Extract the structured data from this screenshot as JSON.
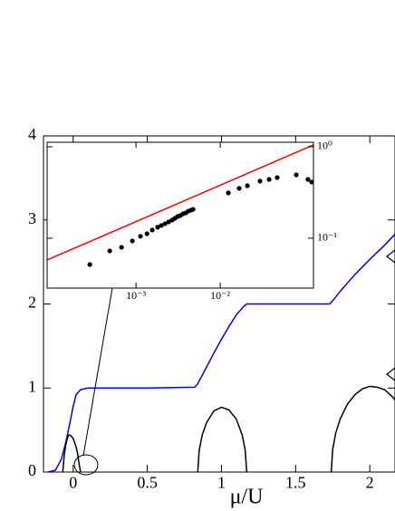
{
  "chart_data": [
    {
      "type": "line",
      "xlabel": "μ/U",
      "xlim": [
        -0.2,
        2.17
      ],
      "ylim": [
        0,
        4
      ],
      "xticks": [
        0,
        0.5,
        1,
        1.5,
        2
      ],
      "yticks": [
        0,
        1,
        2,
        3,
        4
      ],
      "series": [
        {
          "color": "#0000ff",
          "style": "line",
          "x": [
            -0.17,
            -0.12,
            -0.08,
            -0.05,
            -0.02,
            0.0,
            0.02,
            0.05,
            0.1,
            0.5,
            0.82,
            0.84,
            0.9,
            0.95,
            1.0,
            1.05,
            1.1,
            1.15,
            1.17,
            1.5,
            1.73,
            1.76,
            1.8,
            1.9,
            2.0,
            2.1,
            2.17
          ],
          "values": [
            0,
            0.02,
            0.15,
            0.35,
            0.6,
            0.78,
            0.92,
            0.98,
            1.0,
            1.0,
            1.01,
            1.05,
            1.25,
            1.42,
            1.58,
            1.73,
            1.87,
            1.97,
            2.0,
            2.0,
            2.0,
            2.06,
            2.15,
            2.35,
            2.53,
            2.7,
            2.83
          ]
        },
        {
          "color": "#000000",
          "style": "line",
          "x": [
            -0.07,
            -0.06,
            -0.05,
            -0.04,
            -0.03,
            -0.02,
            0.0,
            0.02,
            0.03,
            0.04,
            0.05
          ],
          "values": [
            0,
            0.2,
            0.32,
            0.4,
            0.44,
            0.44,
            0.4,
            0.3,
            0.22,
            0.1,
            0
          ]
        },
        {
          "color": "#000000",
          "style": "line",
          "x": [
            0.84,
            0.85,
            0.87,
            0.9,
            0.95,
            1.0,
            1.05,
            1.1,
            1.14,
            1.16,
            1.17
          ],
          "values": [
            0,
            0.26,
            0.44,
            0.59,
            0.73,
            0.77,
            0.74,
            0.63,
            0.44,
            0.26,
            0
          ]
        },
        {
          "color": "#000000",
          "style": "line",
          "x": [
            1.74,
            1.75,
            1.77,
            1.8,
            1.85,
            1.9,
            1.95,
            2.0,
            2.05,
            2.1,
            2.15,
            2.17
          ],
          "values": [
            0,
            0.27,
            0.46,
            0.63,
            0.81,
            0.92,
            0.99,
            1.02,
            1.01,
            0.98,
            0.9,
            0.86
          ]
        }
      ]
    },
    {
      "type": "scatter",
      "xscale": "log",
      "yscale": "log",
      "yaxis_side": "right",
      "xlim": [
        8.8e-05,
        0.128
      ],
      "ylim": [
        0.0285,
        1.12
      ],
      "xticks": [
        {
          "value": 0.001,
          "label": "10⁻³"
        },
        {
          "value": 0.01,
          "label": "10⁻²"
        }
      ],
      "yticks": [
        {
          "value": 0.1,
          "label": "10⁻¹"
        },
        {
          "value": 1,
          "label": "10⁰"
        }
      ],
      "series": [
        {
          "color": "#ff0000",
          "style": "line",
          "x": [
            8.8e-05,
            0.128
          ],
          "values": [
            0.0578,
            1.047
          ]
        },
        {
          "color": "#000000",
          "style": "points",
          "x": [
            0.000283,
            0.000488,
            0.000673,
            0.000906,
            0.00113,
            0.00135,
            0.00156,
            0.00181,
            0.002,
            0.00221,
            0.00244,
            0.00269,
            0.0029,
            0.00313,
            0.00337,
            0.00362,
            0.0039,
            0.0042,
            0.00453,
            0.00476,
            0.0125,
            0.0168,
            0.021,
            0.0297,
            0.0381,
            0.0475,
            0.08,
            0.11,
            0.122
          ],
          "values": [
            0.0516,
            0.0727,
            0.0796,
            0.0934,
            0.105,
            0.112,
            0.123,
            0.132,
            0.138,
            0.144,
            0.151,
            0.158,
            0.165,
            0.173,
            0.177,
            0.185,
            0.189,
            0.198,
            0.203,
            0.207,
            0.313,
            0.351,
            0.375,
            0.421,
            0.44,
            0.46,
            0.493,
            0.44,
            0.411
          ]
        }
      ]
    }
  ]
}
